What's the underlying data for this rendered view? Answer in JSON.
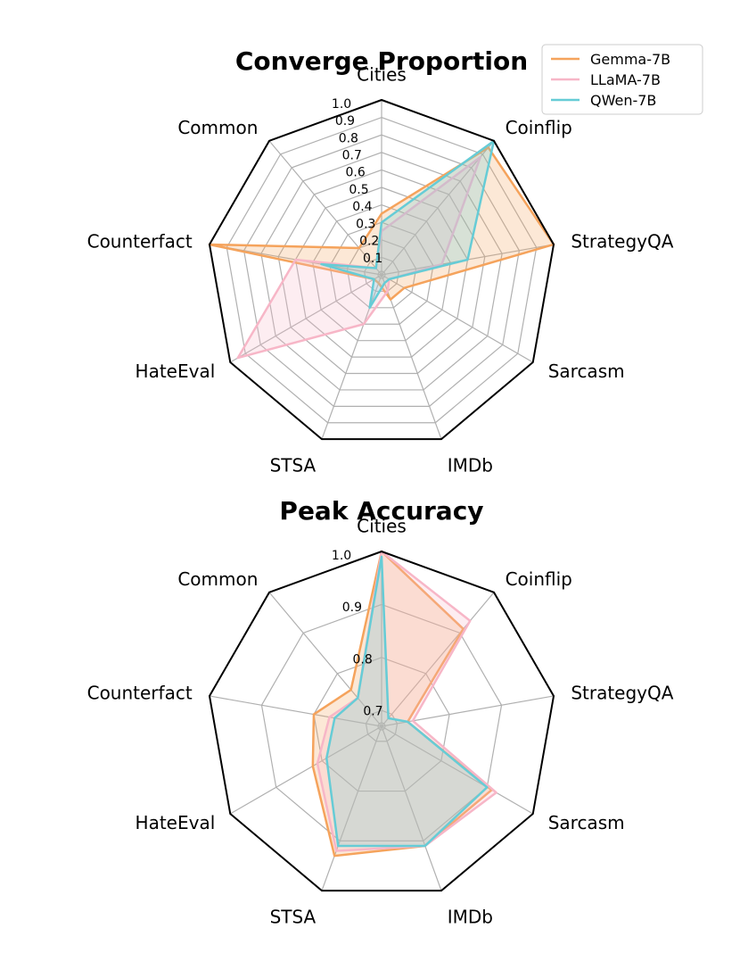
{
  "chart_data": [
    {
      "type": "radar",
      "title": "Converge Proportion",
      "categories": [
        "Cities",
        "Coinflip",
        "StrategyQA",
        "Sarcasm",
        "IMDb",
        "STSA",
        "HateEval",
        "Counterfact",
        "Common"
      ],
      "rlim": [
        0,
        1.0
      ],
      "ticks": [
        0.1,
        0.2,
        0.3,
        0.4,
        0.5,
        0.6,
        0.7,
        0.8,
        0.9,
        1.0
      ],
      "tick_labels": [
        "0.1",
        "0.2",
        "0.3",
        "0.4",
        "0.5",
        "0.6",
        "0.7",
        "0.8",
        "0.9",
        "1.0"
      ],
      "grid": true,
      "series": [
        {
          "name": "Gemma-7B",
          "color": "#f5a35c",
          "values": [
            0.35,
            0.95,
            1.0,
            0.15,
            0.15,
            0.05,
            0.05,
            1.0,
            0.2
          ]
        },
        {
          "name": "LLaMA-7B",
          "color": "#f7b6c7",
          "values": [
            0.25,
            0.88,
            0.35,
            0.05,
            0.1,
            0.3,
            0.95,
            0.5,
            0.05
          ]
        },
        {
          "name": "QWen-7B",
          "color": "#66ccd6",
          "values": [
            0.3,
            1.0,
            0.5,
            0.05,
            0.05,
            0.2,
            0.05,
            0.35,
            0.05
          ]
        }
      ],
      "legend": {
        "placement": "top-right"
      }
    },
    {
      "type": "radar",
      "title": "Peak Accuracy",
      "categories": [
        "Cities",
        "Coinflip",
        "StrategyQA",
        "Sarcasm",
        "IMDb",
        "STSA",
        "HateEval",
        "Counterfact",
        "Common"
      ],
      "rlim": [
        0.67,
        1.0
      ],
      "ticks": [
        0.7,
        0.8,
        0.9,
        1.0
      ],
      "tick_labels": [
        "0.7",
        "0.8",
        "0.9",
        "1.0"
      ],
      "grid": true,
      "series": [
        {
          "name": "Gemma-7B",
          "color": "#f5a35c",
          "values": [
            1.0,
            0.91,
            0.72,
            0.91,
            0.91,
            0.93,
            0.82,
            0.8,
            0.76
          ]
        },
        {
          "name": "LLaMA-7B",
          "color": "#f7b6c7",
          "values": [
            1.0,
            0.93,
            0.73,
            0.92,
            0.91,
            0.92,
            0.81,
            0.77,
            0.74
          ]
        },
        {
          "name": "QWen-7B",
          "color": "#66ccd6",
          "values": [
            0.99,
            0.69,
            0.72,
            0.9,
            0.91,
            0.91,
            0.79,
            0.76,
            0.74
          ]
        }
      ]
    }
  ]
}
